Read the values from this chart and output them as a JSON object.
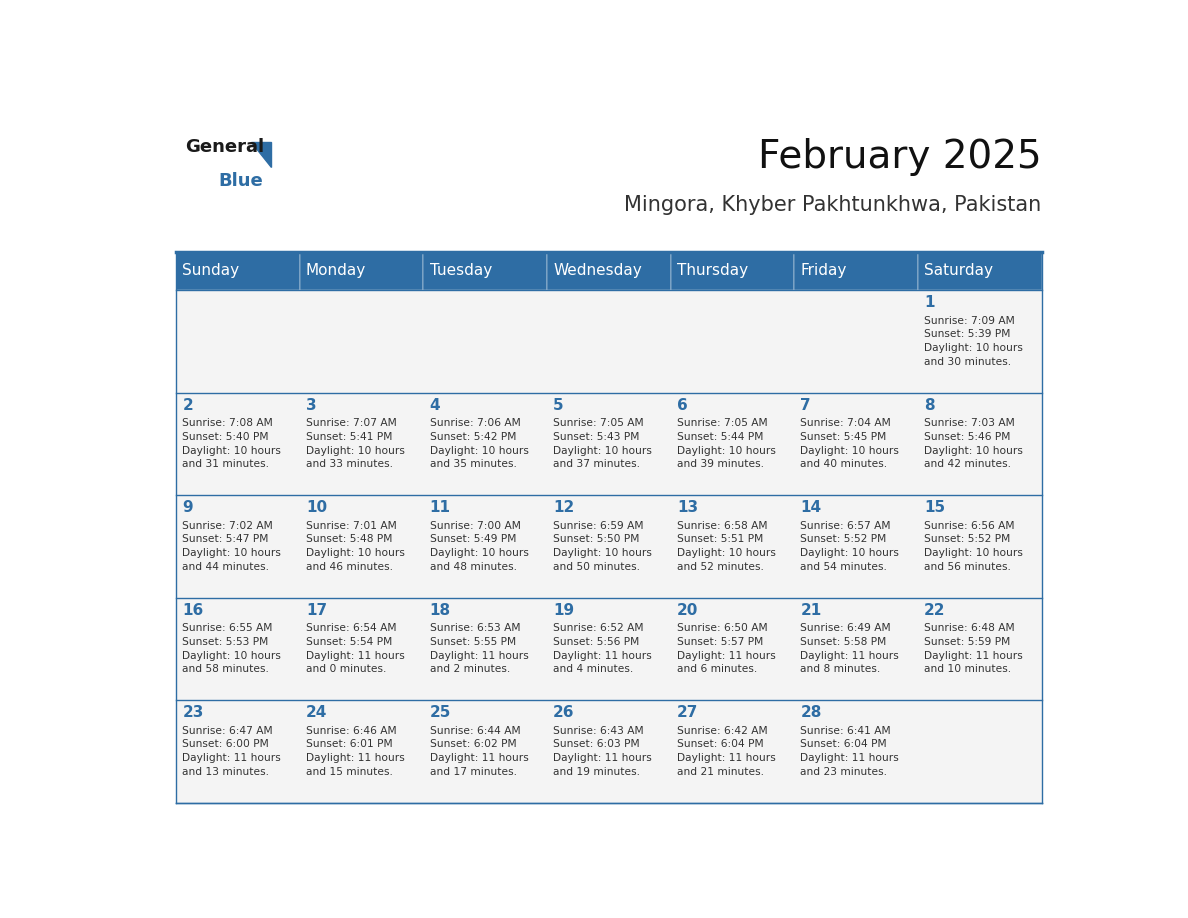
{
  "title": "February 2025",
  "subtitle": "Mingora, Khyber Pakhtunkhwa, Pakistan",
  "header_color": "#2E6DA4",
  "header_text_color": "#FFFFFF",
  "cell_bg_color": "#F2F2F2",
  "border_color": "#2E6DA4",
  "text_color": "#333333",
  "day_headers": [
    "Sunday",
    "Monday",
    "Tuesday",
    "Wednesday",
    "Thursday",
    "Friday",
    "Saturday"
  ],
  "weeks": [
    [
      {
        "day": "",
        "info": ""
      },
      {
        "day": "",
        "info": ""
      },
      {
        "day": "",
        "info": ""
      },
      {
        "day": "",
        "info": ""
      },
      {
        "day": "",
        "info": ""
      },
      {
        "day": "",
        "info": ""
      },
      {
        "day": "1",
        "info": "Sunrise: 7:09 AM\nSunset: 5:39 PM\nDaylight: 10 hours\nand 30 minutes."
      }
    ],
    [
      {
        "day": "2",
        "info": "Sunrise: 7:08 AM\nSunset: 5:40 PM\nDaylight: 10 hours\nand 31 minutes."
      },
      {
        "day": "3",
        "info": "Sunrise: 7:07 AM\nSunset: 5:41 PM\nDaylight: 10 hours\nand 33 minutes."
      },
      {
        "day": "4",
        "info": "Sunrise: 7:06 AM\nSunset: 5:42 PM\nDaylight: 10 hours\nand 35 minutes."
      },
      {
        "day": "5",
        "info": "Sunrise: 7:05 AM\nSunset: 5:43 PM\nDaylight: 10 hours\nand 37 minutes."
      },
      {
        "day": "6",
        "info": "Sunrise: 7:05 AM\nSunset: 5:44 PM\nDaylight: 10 hours\nand 39 minutes."
      },
      {
        "day": "7",
        "info": "Sunrise: 7:04 AM\nSunset: 5:45 PM\nDaylight: 10 hours\nand 40 minutes."
      },
      {
        "day": "8",
        "info": "Sunrise: 7:03 AM\nSunset: 5:46 PM\nDaylight: 10 hours\nand 42 minutes."
      }
    ],
    [
      {
        "day": "9",
        "info": "Sunrise: 7:02 AM\nSunset: 5:47 PM\nDaylight: 10 hours\nand 44 minutes."
      },
      {
        "day": "10",
        "info": "Sunrise: 7:01 AM\nSunset: 5:48 PM\nDaylight: 10 hours\nand 46 minutes."
      },
      {
        "day": "11",
        "info": "Sunrise: 7:00 AM\nSunset: 5:49 PM\nDaylight: 10 hours\nand 48 minutes."
      },
      {
        "day": "12",
        "info": "Sunrise: 6:59 AM\nSunset: 5:50 PM\nDaylight: 10 hours\nand 50 minutes."
      },
      {
        "day": "13",
        "info": "Sunrise: 6:58 AM\nSunset: 5:51 PM\nDaylight: 10 hours\nand 52 minutes."
      },
      {
        "day": "14",
        "info": "Sunrise: 6:57 AM\nSunset: 5:52 PM\nDaylight: 10 hours\nand 54 minutes."
      },
      {
        "day": "15",
        "info": "Sunrise: 6:56 AM\nSunset: 5:52 PM\nDaylight: 10 hours\nand 56 minutes."
      }
    ],
    [
      {
        "day": "16",
        "info": "Sunrise: 6:55 AM\nSunset: 5:53 PM\nDaylight: 10 hours\nand 58 minutes."
      },
      {
        "day": "17",
        "info": "Sunrise: 6:54 AM\nSunset: 5:54 PM\nDaylight: 11 hours\nand 0 minutes."
      },
      {
        "day": "18",
        "info": "Sunrise: 6:53 AM\nSunset: 5:55 PM\nDaylight: 11 hours\nand 2 minutes."
      },
      {
        "day": "19",
        "info": "Sunrise: 6:52 AM\nSunset: 5:56 PM\nDaylight: 11 hours\nand 4 minutes."
      },
      {
        "day": "20",
        "info": "Sunrise: 6:50 AM\nSunset: 5:57 PM\nDaylight: 11 hours\nand 6 minutes."
      },
      {
        "day": "21",
        "info": "Sunrise: 6:49 AM\nSunset: 5:58 PM\nDaylight: 11 hours\nand 8 minutes."
      },
      {
        "day": "22",
        "info": "Sunrise: 6:48 AM\nSunset: 5:59 PM\nDaylight: 11 hours\nand 10 minutes."
      }
    ],
    [
      {
        "day": "23",
        "info": "Sunrise: 6:47 AM\nSunset: 6:00 PM\nDaylight: 11 hours\nand 13 minutes."
      },
      {
        "day": "24",
        "info": "Sunrise: 6:46 AM\nSunset: 6:01 PM\nDaylight: 11 hours\nand 15 minutes."
      },
      {
        "day": "25",
        "info": "Sunrise: 6:44 AM\nSunset: 6:02 PM\nDaylight: 11 hours\nand 17 minutes."
      },
      {
        "day": "26",
        "info": "Sunrise: 6:43 AM\nSunset: 6:03 PM\nDaylight: 11 hours\nand 19 minutes."
      },
      {
        "day": "27",
        "info": "Sunrise: 6:42 AM\nSunset: 6:04 PM\nDaylight: 11 hours\nand 21 minutes."
      },
      {
        "day": "28",
        "info": "Sunrise: 6:41 AM\nSunset: 6:04 PM\nDaylight: 11 hours\nand 23 minutes."
      },
      {
        "day": "",
        "info": ""
      }
    ]
  ]
}
